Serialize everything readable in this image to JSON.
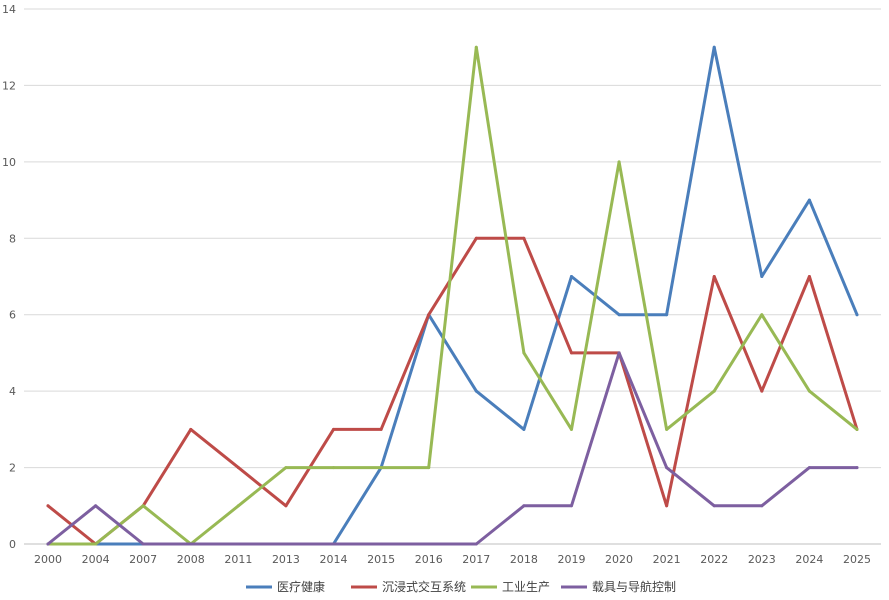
{
  "chart_data": {
    "type": "line",
    "title": "",
    "xlabel": "",
    "ylabel": "",
    "categories": [
      "2000",
      "2004",
      "2007",
      "2008",
      "2011",
      "2013",
      "2014",
      "2015",
      "2016",
      "2017",
      "2018",
      "2019",
      "2020",
      "2021",
      "2022",
      "2023",
      "2024",
      "2025"
    ],
    "ylim": [
      0,
      14
    ],
    "yticks": [
      0,
      2,
      4,
      6,
      8,
      10,
      12,
      14
    ],
    "grid": true,
    "legend_position": "bottom",
    "series": [
      {
        "name": "医疗健康",
        "color": "#4a7ebb",
        "values": [
          0,
          0,
          0,
          0,
          0,
          0,
          0,
          2,
          6,
          4,
          3,
          7,
          6,
          6,
          13,
          7,
          9,
          6
        ]
      },
      {
        "name": "沉浸式交互系统",
        "color": "#be4b48",
        "values": [
          1,
          0,
          1,
          3,
          2,
          1,
          3,
          3,
          6,
          8,
          8,
          5,
          5,
          1,
          7,
          4,
          7,
          3
        ]
      },
      {
        "name": "工业生产",
        "color": "#98b954",
        "values": [
          0,
          0,
          1,
          0,
          1,
          2,
          2,
          2,
          2,
          13,
          5,
          3,
          10,
          3,
          4,
          6,
          4,
          3
        ]
      },
      {
        "name": "载具与导航控制",
        "color": "#7d5fa0",
        "values": [
          0,
          1,
          0,
          0,
          0,
          0,
          0,
          0,
          0,
          0,
          1,
          1,
          5,
          2,
          1,
          1,
          2,
          2
        ]
      }
    ]
  }
}
